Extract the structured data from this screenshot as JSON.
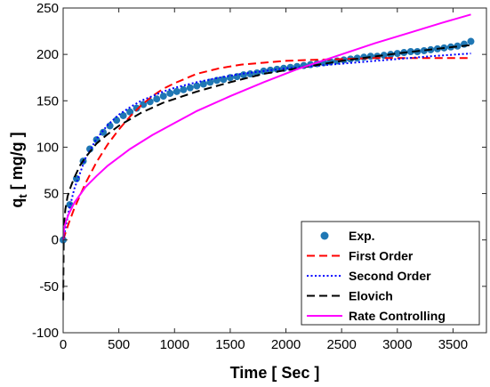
{
  "chart_data": {
    "type": "scatter",
    "xlabel": "Time [ Sec ]",
    "ylabel": {
      "main": "q",
      "sub": "t",
      "rest": " [ mg/g ]"
    },
    "xlim": [
      0,
      3800
    ],
    "ylim": [
      -100,
      250
    ],
    "xticks": [
      0,
      500,
      1000,
      1500,
      2000,
      2500,
      3000,
      3500
    ],
    "yticks": [
      -100,
      -50,
      0,
      50,
      100,
      150,
      200,
      250
    ],
    "grid": false,
    "legend_position": "bottom-right",
    "series": [
      {
        "name": "Exp.",
        "kind": "markers",
        "color": "#1f77b4",
        "x": [
          0,
          60,
          120,
          180,
          240,
          300,
          360,
          420,
          480,
          540,
          600,
          660,
          720,
          780,
          840,
          900,
          960,
          1020,
          1080,
          1140,
          1200,
          1260,
          1320,
          1380,
          1440,
          1500,
          1560,
          1620,
          1680,
          1740,
          1800,
          1860,
          1920,
          1980,
          2040,
          2100,
          2160,
          2220,
          2280,
          2340,
          2400,
          2460,
          2520,
          2580,
          2640,
          2700,
          2760,
          2820,
          2880,
          2940,
          3000,
          3060,
          3120,
          3180,
          3240,
          3300,
          3360,
          3420,
          3480,
          3540,
          3600,
          3660
        ],
        "y": [
          0,
          38,
          66,
          85,
          98,
          108,
          116,
          123,
          129,
          134,
          138,
          142,
          146,
          149,
          152,
          155,
          158,
          160,
          162,
          164,
          166,
          168,
          170,
          172,
          173,
          175,
          176,
          178,
          179,
          180,
          182,
          183,
          184,
          185,
          186,
          187,
          188,
          189,
          190,
          191,
          192,
          193,
          194,
          195,
          196,
          197,
          198,
          198,
          199,
          200,
          201,
          202,
          203,
          203,
          204,
          205,
          206,
          207,
          208,
          209,
          211,
          214
        ]
      },
      {
        "name": "First Order",
        "kind": "line",
        "dash": "dashed",
        "color": "#ff0000",
        "x": [
          0,
          50,
          100,
          200,
          300,
          400,
          500,
          600,
          700,
          800,
          900,
          1000,
          1200,
          1400,
          1600,
          1800,
          2000,
          2200,
          2500,
          2800,
          3000,
          3300,
          3660
        ],
        "y": [
          0,
          18,
          34,
          61,
          84,
          103,
          119,
          133,
          145,
          155,
          163,
          169,
          179,
          185,
          189,
          191,
          193,
          194,
          195,
          196,
          196,
          196,
          196
        ]
      },
      {
        "name": "Second Order",
        "kind": "line",
        "dash": "dotted",
        "color": "#0000ff",
        "x": [
          0,
          50,
          100,
          200,
          300,
          400,
          500,
          600,
          700,
          800,
          900,
          1000,
          1200,
          1400,
          1600,
          1800,
          2000,
          2200,
          2500,
          2800,
          3000,
          3300,
          3660
        ],
        "y": [
          0,
          31,
          55,
          88,
          109,
          124,
          135,
          143,
          150,
          155,
          160,
          164,
          170,
          175,
          179,
          182,
          185,
          187,
          190,
          193,
          195,
          198,
          201
        ]
      },
      {
        "name": "Elovich",
        "kind": "line",
        "dash": "dashed",
        "color": "#000000",
        "x": [
          1,
          2,
          5,
          10,
          20,
          40,
          70,
          100,
          150,
          200,
          300,
          400,
          500,
          700,
          900,
          1200,
          1500,
          1800,
          2100,
          2500,
          3000,
          3500,
          3660
        ],
        "y": [
          -65,
          -37,
          -3,
          20,
          33,
          47,
          58,
          67,
          80,
          89,
          104,
          114,
          123,
          137,
          148,
          160,
          170,
          179,
          185,
          193,
          201,
          208,
          210
        ]
      },
      {
        "name": "Rate Controlling",
        "kind": "line",
        "dash": "solid",
        "color": "#ff00ff",
        "x": [
          0,
          10,
          25,
          50,
          100,
          200,
          300,
          400,
          600,
          800,
          1000,
          1200,
          1500,
          1800,
          2100,
          2500,
          2800,
          3100,
          3400,
          3660
        ],
        "y": [
          0,
          13,
          20,
          28,
          40,
          57,
          69,
          80,
          98,
          113,
          126,
          139,
          155,
          170,
          184,
          200,
          212,
          223,
          234,
          243
        ]
      }
    ]
  }
}
